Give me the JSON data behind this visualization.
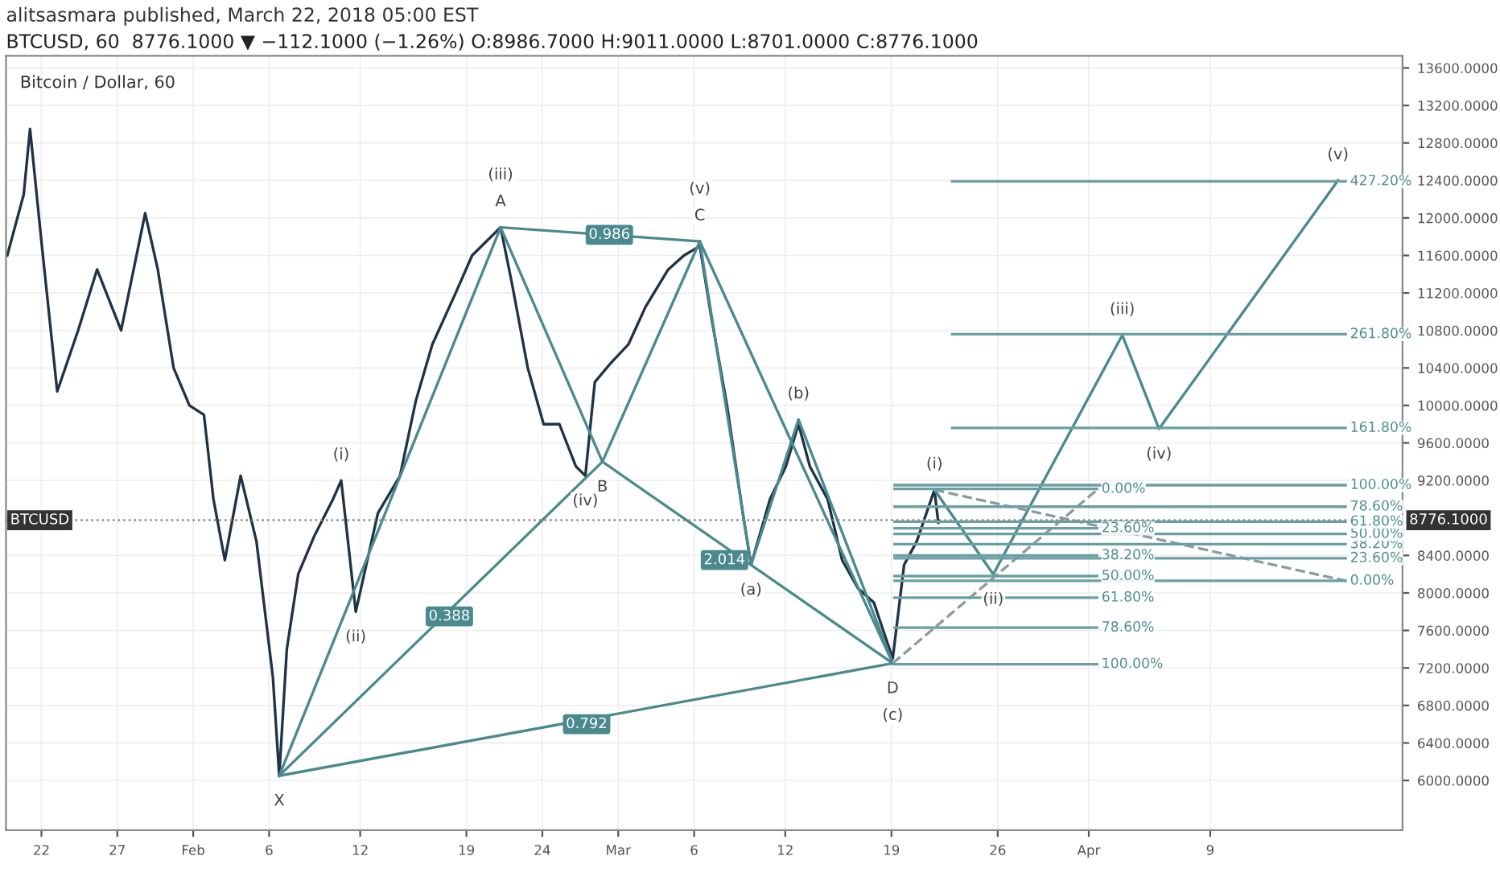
{
  "chart_data": {
    "type": "line",
    "title": "alitsasmara published, March 22, 2018 05:00 EST",
    "subtitle": "BTCUSD, 60  8776.1000 ▼ −112.1000 (−1.26%) O:8986.7000 H:9011.0000 L:8701.0000 C:8776.1000",
    "xlim": [
      "2018-01-19T16:00",
      "2018-04-21T16:00"
    ],
    "ylim": [
      5470,
      13730
    ],
    "xticks": [
      {
        "value": "2018-01-22",
        "label": "22"
      },
      {
        "value": "2018-01-27",
        "label": "27"
      },
      {
        "value": "2018-02-01",
        "label": "Feb"
      },
      {
        "value": "2018-02-06",
        "label": "6"
      },
      {
        "value": "2018-02-12",
        "label": "12"
      },
      {
        "value": "2018-02-19",
        "label": "19"
      },
      {
        "value": "2018-02-24",
        "label": "24"
      },
      {
        "value": "2018-03-01",
        "label": "Mar"
      },
      {
        "value": "2018-03-06",
        "label": "6"
      },
      {
        "value": "2018-03-12",
        "label": "12"
      },
      {
        "value": "2018-03-19",
        "label": "19"
      },
      {
        "value": "2018-03-26",
        "label": "26"
      },
      {
        "value": "2018-04-01",
        "label": "Apr"
      },
      {
        "value": "2018-04-09",
        "label": "9"
      }
    ],
    "yticks": [
      {
        "value": 6000,
        "label": "6000.0000"
      },
      {
        "value": 6400,
        "label": "6400.0000"
      },
      {
        "value": 6800,
        "label": "6800.0000"
      },
      {
        "value": 7200,
        "label": "7200.0000"
      },
      {
        "value": 7600,
        "label": "7600.0000"
      },
      {
        "value": 8000,
        "label": "8000.0000"
      },
      {
        "value": 8400,
        "label": "8400.0000"
      },
      {
        "value": 9200,
        "label": "9200.0000"
      },
      {
        "value": 9600,
        "label": "9600.0000"
      },
      {
        "value": 10000,
        "label": "10000.0000"
      },
      {
        "value": 10400,
        "label": "10400.0000"
      },
      {
        "value": 10800,
        "label": "10800.0000"
      },
      {
        "value": 11200,
        "label": "11200.0000"
      },
      {
        "value": 11600,
        "label": "11600.0000"
      },
      {
        "value": 12000,
        "label": "12000.0000"
      },
      {
        "value": 12400,
        "label": "12400.0000"
      },
      {
        "value": 12800,
        "label": "12800.0000"
      },
      {
        "value": 13200,
        "label": "13200.0000"
      },
      {
        "value": 13600,
        "label": "13600.0000"
      }
    ],
    "grid": true,
    "ref_lines": [
      {
        "axis": "y",
        "value": 8776.1,
        "label": "BTCUSD",
        "color": "#888888",
        "line_style": "dotted"
      }
    ],
    "series": [
      {
        "color": "#1f3347",
        "x": [
          "2018-01-19T18:00",
          "2018-01-20T20:00",
          "2018-01-21T06:00",
          "2018-01-22T00:00",
          "2018-01-23T01:00",
          "2018-01-24T10:00",
          "2018-01-25T16:00",
          "2018-01-27T06:00",
          "2018-01-28T20:00",
          "2018-01-29T16:00",
          "2018-01-30T17:00",
          "2018-01-31T18:00",
          "2018-02-01T17:00",
          "2018-02-02T08:00",
          "2018-02-03T02:00",
          "2018-02-04T03:00",
          "2018-02-05T04:00",
          "2018-02-06T06:00",
          "2018-02-06T16:00",
          "2018-02-07T04:00",
          "2018-02-07T22:00",
          "2018-02-08T23:00",
          "2018-02-10T05:00",
          "2018-02-10T18:00",
          "2018-02-11T17:00",
          "2018-02-13T04:00",
          "2018-02-14T15:00",
          "2018-02-15T16:00",
          "2018-02-16T18:00",
          "2018-02-18T07:00",
          "2018-02-19T09:00",
          "2018-02-21T06:00",
          "2018-02-22T00:00",
          "2018-02-23T01:00",
          "2018-02-24T02:00",
          "2018-02-25T03:00",
          "2018-02-26T05:00",
          "2018-02-26T20:00",
          "2018-02-27T11:00",
          "2018-02-28T12:00",
          "2018-03-01T16:00",
          "2018-03-02T19:00",
          "2018-03-04T07:00",
          "2018-03-05T08:00",
          "2018-03-06T09:00",
          "2018-03-07T03:00",
          "2018-03-08T04:00",
          "2018-03-09T05:00",
          "2018-03-09T18:00",
          "2018-03-11T00:00",
          "2018-03-12T01:00",
          "2018-03-12T21:00",
          "2018-03-13T15:00",
          "2018-03-14T19:00",
          "2018-03-15T18:00",
          "2018-03-16T19:00",
          "2018-03-17T20:00",
          "2018-03-19T02:00",
          "2018-03-19T20:00",
          "2018-03-20T16:00",
          "2018-03-21T20:00",
          "2018-03-22T02:00"
        ],
        "values": [
          11600,
          12250,
          12950,
          11750,
          10150,
          10800,
          11450,
          10800,
          12050,
          11450,
          10400,
          10000,
          9900,
          9000,
          8350,
          9250,
          8550,
          7100,
          6050,
          7400,
          8200,
          8600,
          9000,
          9200,
          7800,
          8850,
          9250,
          10050,
          10650,
          11200,
          11600,
          11900,
          11300,
          10400,
          9800,
          9800,
          9350,
          9250,
          10250,
          10450,
          10650,
          11050,
          11450,
          11600,
          11700,
          10950,
          10000,
          8850,
          8300,
          9000,
          9350,
          9800,
          9350,
          9000,
          8350,
          8050,
          7900,
          7300,
          8300,
          8550,
          9100,
          8750
        ]
      },
      {
        "color": "#4a8a8e",
        "x": [
          "2018-02-06T16:00",
          "2018-02-21T06:00",
          "2018-02-27T23:00",
          "2018-03-06T09:00",
          "2018-03-19T02:00"
        ],
        "values": [
          6050,
          11900,
          9400,
          11750,
          7250
        ]
      },
      {
        "color": "#4a8a8e",
        "x": [
          "2018-02-06T16:00",
          "2018-02-27T23:00",
          "2018-03-19T02:00"
        ],
        "values": [
          6050,
          9400,
          7250
        ]
      },
      {
        "color": "#4a8a8e",
        "x": [
          "2018-02-06T16:00",
          "2018-03-19T02:00"
        ],
        "values": [
          6050,
          7250
        ]
      },
      {
        "color": "#4a8a8e",
        "x": [
          "2018-02-21T06:00",
          "2018-03-06T09:00"
        ],
        "values": [
          11900,
          11750
        ]
      },
      {
        "color": "#4a8a8e",
        "x": [
          "2018-03-06T09:00",
          "2018-03-09T18:00",
          "2018-03-12T21:00",
          "2018-03-19T02:00"
        ],
        "values": [
          11750,
          8300,
          9850,
          7250
        ]
      },
      {
        "color": "#4a8a8e",
        "x": [
          "2018-03-21T20:00",
          "2018-03-25T17:00",
          "2018-04-03T05:00",
          "2018-04-05T15:00",
          "2018-04-17T10:00"
        ],
        "values": [
          9100,
          8200,
          10750,
          9750,
          12400
        ]
      },
      {
        "color": "#8a9ba0",
        "line_style": "dashed",
        "x": [
          "2018-03-19T02:00",
          "2018-04-01T13:00"
        ],
        "values": [
          7250,
          9100
        ]
      },
      {
        "color": "#8a9ba0",
        "line_style": "dashed",
        "x": [
          "2018-03-21T20:00",
          "2018-04-17T22:00"
        ],
        "values": [
          9100,
          8130
        ]
      },
      {
        "color": "#6aa0a3",
        "x": [
          "2018-03-19T05:00",
          "2018-04-01T13:00"
        ],
        "values": [
          9110,
          9110
        ]
      },
      {
        "color": "#6aa0a3",
        "x": [
          "2018-03-19T05:00",
          "2018-04-01T13:00"
        ],
        "values": [
          8690,
          8690
        ]
      },
      {
        "color": "#6aa0a3",
        "x": [
          "2018-03-19T05:00",
          "2018-04-01T13:00"
        ],
        "values": [
          8400,
          8400
        ]
      },
      {
        "color": "#6aa0a3",
        "x": [
          "2018-03-19T05:00",
          "2018-04-01T13:00"
        ],
        "values": [
          8180,
          8180
        ]
      },
      {
        "color": "#6aa0a3",
        "x": [
          "2018-03-19T05:00",
          "2018-04-01T13:00"
        ],
        "values": [
          7950,
          7950
        ]
      },
      {
        "color": "#6aa0a3",
        "x": [
          "2018-03-19T05:00",
          "2018-04-01T13:00"
        ],
        "values": [
          7630,
          7630
        ]
      },
      {
        "color": "#6aa0a3",
        "x": [
          "2018-03-19T05:00",
          "2018-04-01T13:00"
        ],
        "values": [
          7240,
          7240
        ]
      },
      {
        "color": "#6aa0a3",
        "x": [
          "2018-03-19T05:00",
          "2018-04-17T22:00"
        ],
        "values": [
          8130,
          8130
        ]
      },
      {
        "color": "#6aa0a3",
        "x": [
          "2018-03-19T05:00",
          "2018-04-17T22:00"
        ],
        "values": [
          8370,
          8370
        ]
      },
      {
        "color": "#6aa0a3",
        "x": [
          "2018-03-19T05:00",
          "2018-04-17T22:00"
        ],
        "values": [
          8520,
          8520
        ]
      },
      {
        "color": "#6aa0a3",
        "x": [
          "2018-03-19T05:00",
          "2018-04-17T22:00"
        ],
        "values": [
          8630,
          8630
        ]
      },
      {
        "color": "#6aa0a3",
        "x": [
          "2018-03-19T05:00",
          "2018-04-17T22:00"
        ],
        "values": [
          8760,
          8760
        ]
      },
      {
        "color": "#6aa0a3",
        "x": [
          "2018-03-19T05:00",
          "2018-04-17T22:00"
        ],
        "values": [
          8920,
          8920
        ]
      },
      {
        "color": "#6aa0a3",
        "x": [
          "2018-03-19T05:00",
          "2018-04-17T22:00"
        ],
        "values": [
          9150,
          9150
        ]
      },
      {
        "color": "#6aa0a3",
        "x": [
          "2018-03-23T00:00",
          "2018-04-17T22:00"
        ],
        "values": [
          9760,
          9760
        ]
      },
      {
        "color": "#6aa0a3",
        "x": [
          "2018-03-23T00:00",
          "2018-04-17T22:00"
        ],
        "values": [
          10760,
          10760
        ]
      },
      {
        "color": "#6aa0a3",
        "x": [
          "2018-03-23T00:00",
          "2018-04-17T22:00"
        ],
        "values": [
          12390,
          12390
        ]
      }
    ],
    "annotations": [
      "Bitcoin / Dollar, 60",
      {
        "text": "8776.1000",
        "x": "2018-04-21T16:00",
        "y": 8776.1
      },
      {
        "text": "X",
        "x": "2018-02-06T16:00",
        "y": 6050
      },
      {
        "text": "A",
        "x": "2018-02-21T06:00",
        "y": 11900
      },
      {
        "text": "B",
        "x": "2018-02-27T23:00",
        "y": 9400
      },
      {
        "text": "C",
        "x": "2018-03-06T09:00",
        "y": 11750
      },
      {
        "text": "D",
        "x": "2018-03-19T02:00",
        "y": 7250
      },
      {
        "text": "(i)",
        "x": "2018-02-10T18:00",
        "y": 9200
      },
      {
        "text": "(ii)",
        "x": "2018-02-11T17:00",
        "y": 7800
      },
      {
        "text": "(iii)",
        "x": "2018-02-21T06:00",
        "y": 11900
      },
      {
        "text": "(iv)",
        "x": "2018-02-26T20:00",
        "y": 9250
      },
      {
        "text": "(v)",
        "x": "2018-03-06T09:00",
        "y": 11750
      },
      {
        "text": "(a)",
        "x": "2018-03-09T18:00",
        "y": 8300
      },
      {
        "text": "(b)",
        "x": "2018-03-12T21:00",
        "y": 9850
      },
      {
        "text": "(c)",
        "x": "2018-03-19T02:00",
        "y": 7250
      },
      {
        "text": "(i)",
        "x": "2018-03-21T20:00",
        "y": 9100
      },
      {
        "text": "(ii)",
        "x": "2018-03-25T17:00",
        "y": 8200
      },
      {
        "text": "(iii)",
        "x": "2018-04-03T05:00",
        "y": 10750
      },
      {
        "text": "(iv)",
        "x": "2018-04-05T15:00",
        "y": 9750
      },
      {
        "text": "(v)",
        "x": "2018-04-17T10:00",
        "y": 12400
      },
      {
        "text": "0.986",
        "x": "2018-02-28T10:00",
        "y": 11820
      },
      {
        "text": "0.388",
        "x": "2018-02-17T21:00",
        "y": 7750
      },
      {
        "text": "0.792",
        "x": "2018-02-26T22:00",
        "y": 6600
      },
      {
        "text": "2.014",
        "x": "2018-03-08T00:00",
        "y": 8350
      },
      {
        "text": "0.00%",
        "x": "2018-04-01T13:00",
        "y": 9110
      },
      {
        "text": "23.60%",
        "x": "2018-04-01T13:00",
        "y": 8690
      },
      {
        "text": "38.20%",
        "x": "2018-04-01T13:00",
        "y": 8400
      },
      {
        "text": "50.00%",
        "x": "2018-04-01T13:00",
        "y": 8180
      },
      {
        "text": "61.80%",
        "x": "2018-04-01T13:00",
        "y": 7950
      },
      {
        "text": "78.60%",
        "x": "2018-04-01T13:00",
        "y": 7630
      },
      {
        "text": "100.00%",
        "x": "2018-04-01T13:00",
        "y": 7240
      },
      {
        "text": "0.00%",
        "x": "2018-04-17T22:00",
        "y": 8130
      },
      {
        "text": "23.60%",
        "x": "2018-04-17T22:00",
        "y": 8370
      },
      {
        "text": "38.20%",
        "x": "2018-04-17T22:00",
        "y": 8520
      },
      {
        "text": "50.00%",
        "x": "2018-04-17T22:00",
        "y": 8630
      },
      {
        "text": "61.80%",
        "x": "2018-04-17T22:00",
        "y": 8760
      },
      {
        "text": "78.60%",
        "x": "2018-04-17T22:00",
        "y": 8920
      },
      {
        "text": "100.00%",
        "x": "2018-04-17T22:00",
        "y": 9150
      },
      {
        "text": "161.80%",
        "x": "2018-04-17T22:00",
        "y": 9760
      },
      {
        "text": "261.80%",
        "x": "2018-04-17T22:00",
        "y": 10760
      },
      {
        "text": "427.20%",
        "x": "2018-04-17T22:00",
        "y": 12390
      }
    ]
  }
}
